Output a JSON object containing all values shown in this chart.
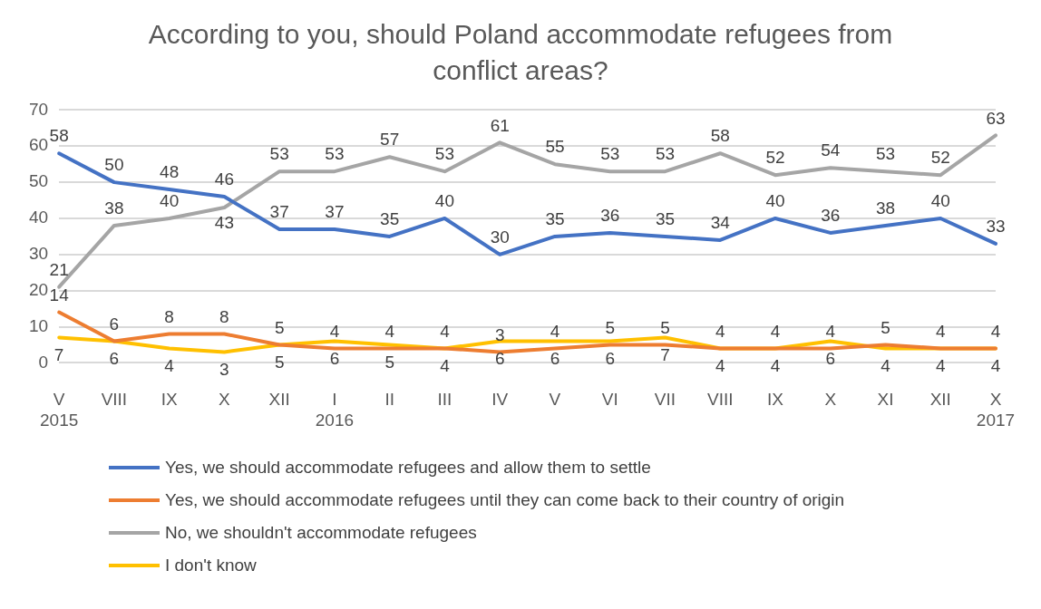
{
  "chart_data": {
    "type": "line",
    "title": "According to you, should Poland accommodate refugees from conflict areas?",
    "categories": [
      "V\n2015",
      "VIII",
      "IX",
      "X",
      "XII",
      "I\n2016",
      "II",
      "III",
      "IV",
      "V",
      "VI",
      "VII",
      "VIII",
      "IX",
      "X",
      "XI",
      "XII",
      "X\n2017"
    ],
    "series": [
      {
        "name": "Yes, we should accommodate refugees and allow them to settle",
        "color": "#4472c4",
        "values": [
          58,
          50,
          48,
          46,
          37,
          37,
          35,
          40,
          30,
          35,
          36,
          35,
          34,
          40,
          36,
          38,
          40,
          33
        ]
      },
      {
        "name": "Yes, we should accommodate refugees until they can come back to their country of origin",
        "color": "#ed7d31",
        "values": [
          14,
          6,
          8,
          8,
          5,
          4,
          4,
          4,
          3,
          4,
          5,
          5,
          4,
          4,
          4,
          5,
          4,
          4
        ]
      },
      {
        "name": "No, we shouldn't accommodate refugees",
        "color": "#a5a5a5",
        "values": [
          21,
          38,
          40,
          43,
          53,
          53,
          57,
          53,
          61,
          55,
          53,
          53,
          58,
          52,
          54,
          53,
          52,
          63
        ]
      },
      {
        "name": "I don't know",
        "color": "#ffc000",
        "values": [
          7,
          6,
          4,
          3,
          5,
          6,
          5,
          4,
          6,
          6,
          6,
          7,
          4,
          4,
          6,
          4,
          4,
          4
        ]
      }
    ],
    "ylim": [
      0,
      70
    ],
    "yticks": [
      0,
      10,
      20,
      30,
      40,
      50,
      60,
      70
    ],
    "grid": "y",
    "legend": "bottom",
    "data_labels": true,
    "marker": "none",
    "line_style": "solid"
  }
}
